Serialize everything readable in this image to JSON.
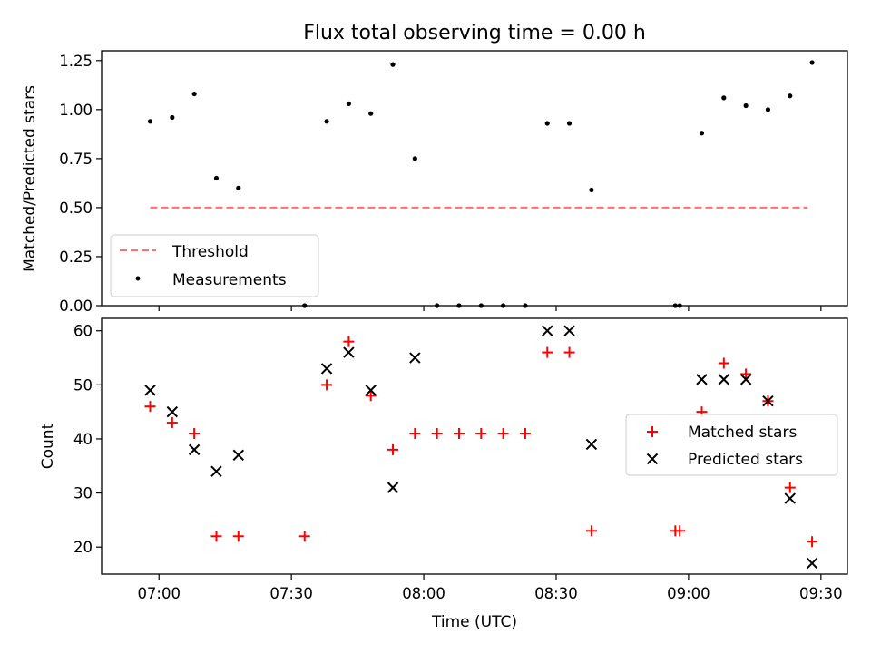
{
  "chart_data": [
    {
      "type": "scatter",
      "title": "Flux total observing time = 0.00 h",
      "xlabel": "",
      "ylabel": "Matched/Predicted stars",
      "ylim": [
        0,
        1.3
      ],
      "yticks": [
        "0.00",
        "0.25",
        "0.50",
        "0.75",
        "1.00",
        "1.25"
      ],
      "grid": false,
      "legend_position": "lower-left",
      "threshold": {
        "name": "Threshold",
        "value": 0.5,
        "x_range": [
          "06:58",
          "09:27"
        ],
        "color": "#ff7070",
        "style": "dashed"
      },
      "series": [
        {
          "name": "Measurements",
          "color": "#000000",
          "marker": "dot",
          "points": [
            [
              "06:58",
              0.94
            ],
            [
              "07:03",
              0.96
            ],
            [
              "07:08",
              1.08
            ],
            [
              "07:13",
              0.65
            ],
            [
              "07:18",
              0.6
            ],
            [
              "07:33",
              0.0
            ],
            [
              "07:38",
              0.94
            ],
            [
              "07:43",
              1.03
            ],
            [
              "07:48",
              0.98
            ],
            [
              "07:53",
              1.23
            ],
            [
              "07:58",
              0.75
            ],
            [
              "08:03",
              0.0
            ],
            [
              "08:08",
              0.0
            ],
            [
              "08:13",
              0.0
            ],
            [
              "08:18",
              0.0
            ],
            [
              "08:23",
              0.0
            ],
            [
              "08:28",
              0.93
            ],
            [
              "08:33",
              0.93
            ],
            [
              "08:38",
              0.59
            ],
            [
              "08:57",
              0.0
            ],
            [
              "08:58",
              0.0
            ],
            [
              "09:03",
              0.88
            ],
            [
              "09:08",
              1.06
            ],
            [
              "09:13",
              1.02
            ],
            [
              "09:18",
              1.0
            ],
            [
              "09:23",
              1.07
            ],
            [
              "09:28",
              1.24
            ]
          ]
        }
      ]
    },
    {
      "type": "scatter",
      "title": "",
      "xlabel": "Time (UTC)",
      "ylabel": "Count",
      "ylim": [
        15,
        62.3
      ],
      "yticks": [
        "20",
        "30",
        "40",
        "50",
        "60"
      ],
      "xlim": [
        "06:47",
        "09:36"
      ],
      "xticks": [
        "07:00",
        "07:30",
        "08:00",
        "08:30",
        "09:00",
        "09:30"
      ],
      "grid": false,
      "legend_position": "center-right",
      "series": [
        {
          "name": "Matched stars",
          "color": "#ff0000",
          "marker": "plus",
          "points": [
            [
              "06:58",
              46
            ],
            [
              "07:03",
              43
            ],
            [
              "07:08",
              41
            ],
            [
              "07:13",
              22
            ],
            [
              "07:18",
              22
            ],
            [
              "07:33",
              22
            ],
            [
              "07:38",
              50
            ],
            [
              "07:43",
              58
            ],
            [
              "07:48",
              48
            ],
            [
              "07:53",
              38
            ],
            [
              "07:58",
              41
            ],
            [
              "08:03",
              41
            ],
            [
              "08:08",
              41
            ],
            [
              "08:13",
              41
            ],
            [
              "08:18",
              41
            ],
            [
              "08:23",
              41
            ],
            [
              "08:28",
              56
            ],
            [
              "08:33",
              56
            ],
            [
              "08:38",
              23
            ],
            [
              "08:57",
              23
            ],
            [
              "08:58",
              23
            ],
            [
              "09:03",
              45
            ],
            [
              "09:08",
              54
            ],
            [
              "09:13",
              52
            ],
            [
              "09:18",
              47
            ],
            [
              "09:23",
              31
            ],
            [
              "09:28",
              21
            ]
          ]
        },
        {
          "name": "Predicted stars",
          "color": "#000000",
          "marker": "x",
          "points": [
            [
              "06:58",
              49
            ],
            [
              "07:03",
              45
            ],
            [
              "07:08",
              38
            ],
            [
              "07:13",
              34
            ],
            [
              "07:18",
              37
            ],
            [
              "07:38",
              53
            ],
            [
              "07:43",
              56
            ],
            [
              "07:48",
              49
            ],
            [
              "07:53",
              31
            ],
            [
              "07:58",
              55
            ],
            [
              "08:28",
              60
            ],
            [
              "08:33",
              60
            ],
            [
              "08:38",
              39
            ],
            [
              "09:03",
              51
            ],
            [
              "09:08",
              51
            ],
            [
              "09:13",
              51
            ],
            [
              "09:18",
              47
            ],
            [
              "09:23",
              29
            ],
            [
              "09:28",
              17
            ]
          ]
        }
      ]
    }
  ]
}
